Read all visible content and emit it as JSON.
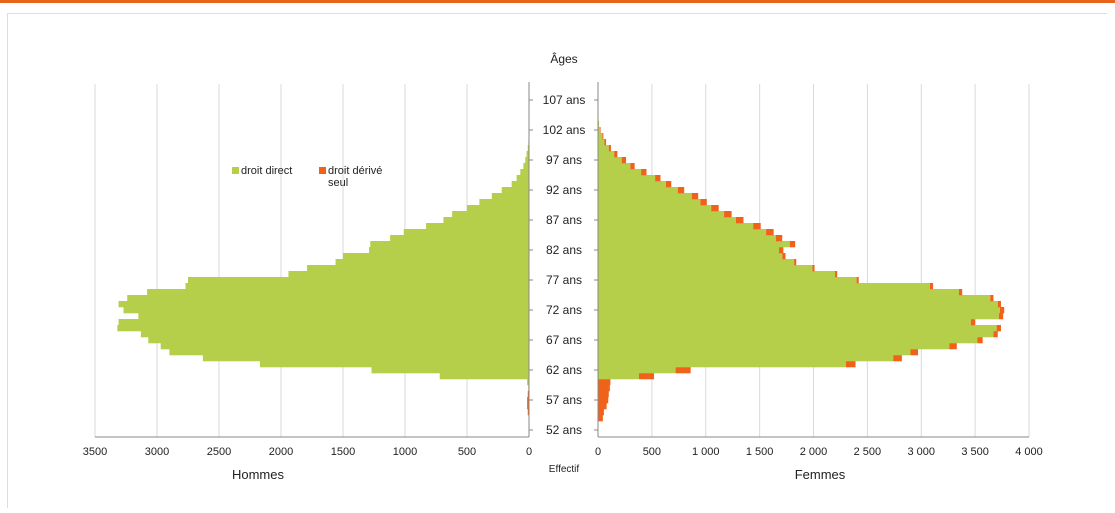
{
  "colors": {
    "accent_bar": "#e8641b",
    "droit_direct": "#b5cf4a",
    "droit_derive": "#f0621a",
    "grid": "#d9d9d9"
  },
  "chart_data": {
    "type": "bar",
    "orientation": "horizontal-pyramid",
    "title": "Âges",
    "center_label": "Effectif",
    "left_label": "Hommes",
    "right_label": "Femmes",
    "legend": [
      {
        "name": "droit direct",
        "color": "#b5cf4a"
      },
      {
        "name": "droit dérivé seul",
        "color": "#f0621a"
      }
    ],
    "age_range": [
      52,
      107
    ],
    "age_ticks": [
      "52 ans",
      "57 ans",
      "62 ans",
      "67 ans",
      "72 ans",
      "77 ans",
      "82 ans",
      "87 ans",
      "92 ans",
      "97 ans",
      "102 ans",
      "107 ans"
    ],
    "left_xlim": [
      0,
      3500
    ],
    "left_ticks": [
      "3500",
      "3000",
      "2500",
      "2000",
      "1500",
      "1000",
      "500",
      "0"
    ],
    "right_xlim": [
      0,
      4000
    ],
    "right_ticks": [
      "0",
      "500",
      "1 000",
      "1 500",
      "2 000",
      "2 500",
      "3 000",
      "3 500",
      "4 000"
    ],
    "hommes": [
      {
        "age": 55,
        "direct": 0,
        "derive": 10
      },
      {
        "age": 56,
        "direct": 0,
        "derive": 15
      },
      {
        "age": 57,
        "direct": 0,
        "derive": 15
      },
      {
        "age": 58,
        "direct": 0,
        "derive": 10
      },
      {
        "age": 59,
        "direct": 0,
        "derive": 5
      },
      {
        "age": 60,
        "direct": 15,
        "derive": 0
      },
      {
        "age": 61,
        "direct": 720,
        "derive": 0
      },
      {
        "age": 62,
        "direct": 1270,
        "derive": 0
      },
      {
        "age": 63,
        "direct": 2170,
        "derive": 0
      },
      {
        "age": 64,
        "direct": 2630,
        "derive": 0
      },
      {
        "age": 65,
        "direct": 2900,
        "derive": 0
      },
      {
        "age": 66,
        "direct": 2970,
        "derive": 0
      },
      {
        "age": 67,
        "direct": 3070,
        "derive": 0
      },
      {
        "age": 68,
        "direct": 3130,
        "derive": 0
      },
      {
        "age": 69,
        "direct": 3320,
        "derive": 0
      },
      {
        "age": 70,
        "direct": 3310,
        "derive": 0
      },
      {
        "age": 71,
        "direct": 3150,
        "derive": 0
      },
      {
        "age": 72,
        "direct": 3270,
        "derive": 0
      },
      {
        "age": 73,
        "direct": 3310,
        "derive": 0
      },
      {
        "age": 74,
        "direct": 3240,
        "derive": 0
      },
      {
        "age": 75,
        "direct": 3080,
        "derive": 0
      },
      {
        "age": 76,
        "direct": 2770,
        "derive": 0
      },
      {
        "age": 77,
        "direct": 2750,
        "derive": 0
      },
      {
        "age": 78,
        "direct": 1940,
        "derive": 0
      },
      {
        "age": 79,
        "direct": 1790,
        "derive": 0
      },
      {
        "age": 80,
        "direct": 1560,
        "derive": 0
      },
      {
        "age": 81,
        "direct": 1500,
        "derive": 0
      },
      {
        "age": 82,
        "direct": 1290,
        "derive": 0
      },
      {
        "age": 83,
        "direct": 1280,
        "derive": 0
      },
      {
        "age": 84,
        "direct": 1120,
        "derive": 0
      },
      {
        "age": 85,
        "direct": 1010,
        "derive": 0
      },
      {
        "age": 86,
        "direct": 830,
        "derive": 0
      },
      {
        "age": 87,
        "direct": 690,
        "derive": 0
      },
      {
        "age": 88,
        "direct": 620,
        "derive": 0
      },
      {
        "age": 89,
        "direct": 500,
        "derive": 0
      },
      {
        "age": 90,
        "direct": 400,
        "derive": 0
      },
      {
        "age": 91,
        "direct": 300,
        "derive": 0
      },
      {
        "age": 92,
        "direct": 220,
        "derive": 0
      },
      {
        "age": 93,
        "direct": 140,
        "derive": 0
      },
      {
        "age": 94,
        "direct": 100,
        "derive": 0
      },
      {
        "age": 95,
        "direct": 70,
        "derive": 0
      },
      {
        "age": 96,
        "direct": 45,
        "derive": 0
      },
      {
        "age": 97,
        "direct": 30,
        "derive": 0
      },
      {
        "age": 98,
        "direct": 20,
        "derive": 0
      },
      {
        "age": 99,
        "direct": 10,
        "derive": 0
      },
      {
        "age": 100,
        "direct": 5,
        "derive": 0
      }
    ],
    "femmes": [
      {
        "age": 54,
        "direct": 0,
        "derive": 45
      },
      {
        "age": 55,
        "direct": 0,
        "derive": 55
      },
      {
        "age": 56,
        "direct": 0,
        "derive": 80
      },
      {
        "age": 57,
        "direct": 0,
        "derive": 95
      },
      {
        "age": 58,
        "direct": 0,
        "derive": 100
      },
      {
        "age": 59,
        "direct": 0,
        "derive": 110
      },
      {
        "age": 60,
        "direct": 0,
        "derive": 115
      },
      {
        "age": 61,
        "direct": 380,
        "derive": 140
      },
      {
        "age": 62,
        "direct": 720,
        "derive": 140
      },
      {
        "age": 63,
        "direct": 2300,
        "derive": 90
      },
      {
        "age": 64,
        "direct": 2740,
        "derive": 80
      },
      {
        "age": 65,
        "direct": 2900,
        "derive": 70
      },
      {
        "age": 66,
        "direct": 3260,
        "derive": 70
      },
      {
        "age": 67,
        "direct": 3520,
        "derive": 50
      },
      {
        "age": 68,
        "direct": 3670,
        "derive": 40
      },
      {
        "age": 69,
        "direct": 3700,
        "derive": 40
      },
      {
        "age": 70,
        "direct": 3460,
        "derive": 40
      },
      {
        "age": 71,
        "direct": 3720,
        "derive": 40
      },
      {
        "age": 72,
        "direct": 3730,
        "derive": 40
      },
      {
        "age": 73,
        "direct": 3710,
        "derive": 30
      },
      {
        "age": 74,
        "direct": 3640,
        "derive": 30
      },
      {
        "age": 75,
        "direct": 3350,
        "derive": 30
      },
      {
        "age": 76,
        "direct": 3080,
        "derive": 30
      },
      {
        "age": 77,
        "direct": 2400,
        "derive": 20
      },
      {
        "age": 78,
        "direct": 2200,
        "derive": 20
      },
      {
        "age": 79,
        "direct": 1990,
        "derive": 20
      },
      {
        "age": 80,
        "direct": 1820,
        "derive": 20
      },
      {
        "age": 81,
        "direct": 1710,
        "derive": 30
      },
      {
        "age": 82,
        "direct": 1680,
        "derive": 40
      },
      {
        "age": 83,
        "direct": 1780,
        "derive": 50
      },
      {
        "age": 84,
        "direct": 1650,
        "derive": 60
      },
      {
        "age": 85,
        "direct": 1560,
        "derive": 70
      },
      {
        "age": 86,
        "direct": 1440,
        "derive": 70
      },
      {
        "age": 87,
        "direct": 1280,
        "derive": 70
      },
      {
        "age": 88,
        "direct": 1170,
        "derive": 70
      },
      {
        "age": 89,
        "direct": 1050,
        "derive": 70
      },
      {
        "age": 90,
        "direct": 950,
        "derive": 60
      },
      {
        "age": 91,
        "direct": 870,
        "derive": 60
      },
      {
        "age": 92,
        "direct": 740,
        "derive": 60
      },
      {
        "age": 93,
        "direct": 630,
        "derive": 50
      },
      {
        "age": 94,
        "direct": 530,
        "derive": 50
      },
      {
        "age": 95,
        "direct": 400,
        "derive": 50
      },
      {
        "age": 96,
        "direct": 300,
        "derive": 40
      },
      {
        "age": 97,
        "direct": 220,
        "derive": 40
      },
      {
        "age": 98,
        "direct": 150,
        "derive": 30
      },
      {
        "age": 99,
        "direct": 100,
        "derive": 20
      },
      {
        "age": 100,
        "direct": 60,
        "derive": 15
      },
      {
        "age": 101,
        "direct": 40,
        "derive": 10
      },
      {
        "age": 102,
        "direct": 20,
        "derive": 5
      },
      {
        "age": 103,
        "direct": 10,
        "derive": 0
      },
      {
        "age": 104,
        "direct": 5,
        "derive": 0
      }
    ],
    "grid": true,
    "legend_placement": "upper-left"
  }
}
